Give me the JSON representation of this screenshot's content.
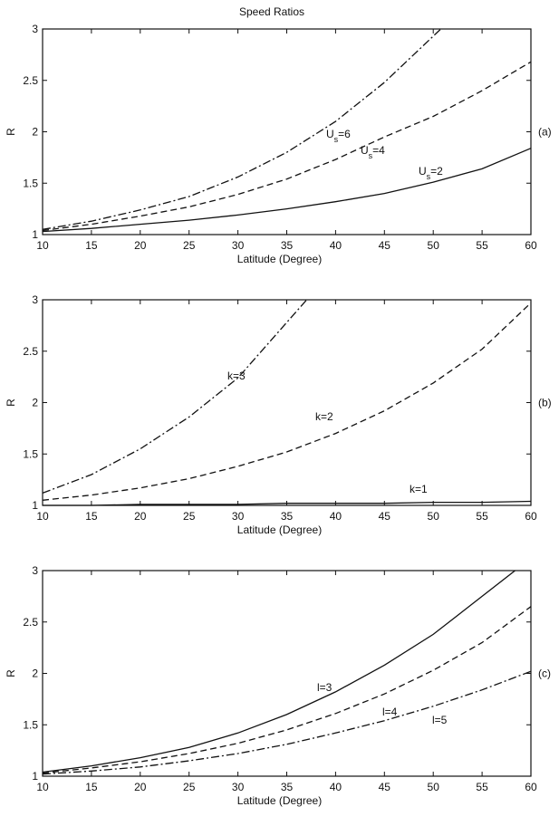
{
  "figure_title": "Speed Ratios",
  "chart_data": [
    {
      "type": "line",
      "panel_label": "(a)",
      "xlabel": "Latitude (Degree)",
      "ylabel": "R",
      "xlim": [
        10,
        60
      ],
      "ylim": [
        1,
        3
      ],
      "xticks": [
        10,
        15,
        20,
        25,
        30,
        35,
        40,
        45,
        50,
        55,
        60
      ],
      "yticks": [
        1,
        1.5,
        2,
        2.5,
        3
      ],
      "grid": false,
      "x": [
        10,
        15,
        20,
        25,
        30,
        35,
        40,
        45,
        50,
        55,
        60
      ],
      "series": [
        {
          "label_main": "U",
          "label_sub": "s",
          "label_tail": "=6",
          "style": "dashdot",
          "values": [
            1.05,
            1.13,
            1.24,
            1.37,
            1.56,
            1.8,
            2.1,
            2.48,
            2.93,
            null,
            null
          ]
        },
        {
          "label_main": "U",
          "label_sub": "s",
          "label_tail": "=4",
          "style": "dashed",
          "values": [
            1.04,
            1.1,
            1.18,
            1.27,
            1.39,
            1.54,
            1.73,
            1.95,
            2.15,
            2.4,
            2.68
          ]
        },
        {
          "label_main": "U",
          "label_sub": "s",
          "label_tail": "=2",
          "style": "solid",
          "values": [
            1.03,
            1.06,
            1.1,
            1.14,
            1.19,
            1.25,
            1.32,
            1.4,
            1.51,
            1.64,
            1.84
          ]
        }
      ]
    },
    {
      "type": "line",
      "panel_label": "(b)",
      "xlabel": "Latitude (Degree)",
      "ylabel": "R",
      "xlim": [
        10,
        60
      ],
      "ylim": [
        1,
        3
      ],
      "xticks": [
        10,
        15,
        20,
        25,
        30,
        35,
        40,
        45,
        50,
        55,
        60
      ],
      "yticks": [
        1,
        1.5,
        2,
        2.5,
        3
      ],
      "grid": false,
      "x": [
        10,
        15,
        20,
        25,
        30,
        35,
        40,
        45,
        50,
        55,
        60
      ],
      "series": [
        {
          "label_main": "k=3",
          "label_sub": "",
          "label_tail": "",
          "style": "dashdot",
          "values": [
            1.12,
            1.3,
            1.55,
            1.86,
            2.24,
            2.78,
            null,
            null,
            null,
            null,
            null
          ]
        },
        {
          "label_main": "k=2",
          "label_sub": "",
          "label_tail": "",
          "style": "dashed",
          "values": [
            1.05,
            1.1,
            1.17,
            1.26,
            1.38,
            1.52,
            1.7,
            1.92,
            2.19,
            2.52,
            2.97
          ]
        },
        {
          "label_main": "k=1",
          "label_sub": "",
          "label_tail": "",
          "style": "solid",
          "values": [
            1.0,
            1.0,
            1.01,
            1.01,
            1.01,
            1.02,
            1.02,
            1.02,
            1.03,
            1.03,
            1.04
          ]
        }
      ]
    },
    {
      "type": "line",
      "panel_label": "(c)",
      "xlabel": "Latitude (Degree)",
      "ylabel": "R",
      "xlim": [
        10,
        60
      ],
      "ylim": [
        1,
        3
      ],
      "xticks": [
        10,
        15,
        20,
        25,
        30,
        35,
        40,
        45,
        50,
        55,
        60
      ],
      "yticks": [
        1,
        1.5,
        2,
        2.5,
        3
      ],
      "grid": false,
      "x": [
        10,
        15,
        20,
        25,
        30,
        35,
        40,
        45,
        50,
        55,
        60
      ],
      "series": [
        {
          "label_main": "l=3",
          "label_sub": "",
          "label_tail": "",
          "style": "solid",
          "values": [
            1.04,
            1.1,
            1.18,
            1.28,
            1.42,
            1.6,
            1.82,
            2.08,
            2.38,
            2.75,
            null
          ]
        },
        {
          "label_main": "l=4",
          "label_sub": "",
          "label_tail": "",
          "style": "dashed",
          "values": [
            1.03,
            1.08,
            1.14,
            1.22,
            1.32,
            1.45,
            1.61,
            1.8,
            2.03,
            2.3,
            2.65
          ]
        },
        {
          "label_main": "l=5",
          "label_sub": "",
          "label_tail": "",
          "style": "dashdot",
          "values": [
            1.02,
            1.05,
            1.09,
            1.15,
            1.22,
            1.31,
            1.42,
            1.54,
            1.68,
            1.84,
            2.02
          ]
        }
      ]
    }
  ]
}
